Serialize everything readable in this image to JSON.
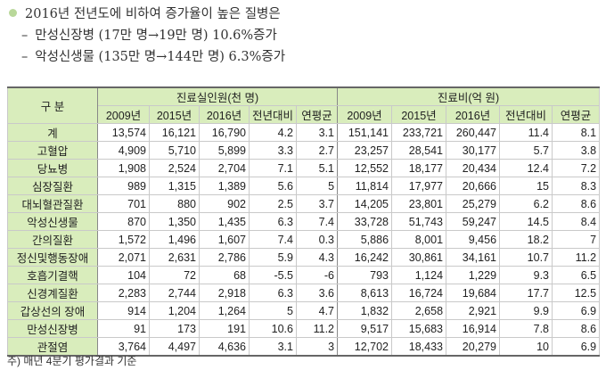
{
  "bullets": {
    "main": "2016년 전년도에 비하여 증가율이 높은 질병은",
    "sub": [
      "만성신장병 (17만 명→19만 명) 10.6%증가",
      "악성신생물 (135만 명→144만 명) 6.3%증가"
    ]
  },
  "table": {
    "category_header": "구 분",
    "group_headers": [
      "진료실인원(천 명)",
      "진료비(억 원)"
    ],
    "sub_headers": [
      "2009년",
      "2015년",
      "2016년",
      "전년대비",
      "연평균",
      "2009년",
      "2015년",
      "2016년",
      "전년대비",
      "연평균"
    ],
    "rows": [
      {
        "name": "계",
        "values": [
          "13,574",
          "16,121",
          "16,790",
          "4.2",
          "3.1",
          "151,141",
          "233,721",
          "260,447",
          "11.4",
          "8.1"
        ]
      },
      {
        "name": "고혈압",
        "values": [
          "4,909",
          "5,710",
          "5,899",
          "3.3",
          "2.7",
          "23,257",
          "28,541",
          "30,177",
          "5.7",
          "3.8"
        ]
      },
      {
        "name": "당뇨병",
        "values": [
          "1,908",
          "2,524",
          "2,704",
          "7.1",
          "5.1",
          "12,552",
          "18,177",
          "20,434",
          "12.4",
          "7.2"
        ]
      },
      {
        "name": "심장질환",
        "values": [
          "989",
          "1,315",
          "1,389",
          "5.6",
          "5",
          "11,814",
          "17,977",
          "20,666",
          "15",
          "8.3"
        ]
      },
      {
        "name": "대뇌혈관질환",
        "values": [
          "701",
          "880",
          "902",
          "2.5",
          "3.7",
          "14,205",
          "23,801",
          "25,279",
          "6.2",
          "8.6"
        ]
      },
      {
        "name": "악성신생물",
        "values": [
          "870",
          "1,350",
          "1,435",
          "6.3",
          "7.4",
          "33,728",
          "51,743",
          "59,247",
          "14.5",
          "8.4"
        ]
      },
      {
        "name": "간의질환",
        "values": [
          "1,572",
          "1,496",
          "1,607",
          "7.4",
          "0.3",
          "5,886",
          "8,001",
          "9,456",
          "18.2",
          "7"
        ]
      },
      {
        "name": "정신및행동장애",
        "values": [
          "2,071",
          "2,631",
          "2,786",
          "5.9",
          "4.3",
          "16,242",
          "30,861",
          "34,161",
          "10.7",
          "11.2"
        ]
      },
      {
        "name": "호흡기결핵",
        "values": [
          "104",
          "72",
          "68",
          "-5.5",
          "-6",
          "793",
          "1,124",
          "1,229",
          "9.3",
          "6.5"
        ]
      },
      {
        "name": "신경계질환",
        "values": [
          "2,283",
          "2,744",
          "2,918",
          "6.3",
          "3.6",
          "8,613",
          "16,724",
          "19,684",
          "17.7",
          "12.5"
        ]
      },
      {
        "name": "갑상선의 장애",
        "values": [
          "914",
          "1,204",
          "1,264",
          "5",
          "4.7",
          "1,832",
          "2,658",
          "2,921",
          "9.9",
          "6.9"
        ]
      },
      {
        "name": "만성신장병",
        "values": [
          "91",
          "173",
          "191",
          "10.6",
          "11.2",
          "9,517",
          "15,683",
          "16,914",
          "7.8",
          "8.6"
        ]
      },
      {
        "name": "관절염",
        "values": [
          "3,764",
          "4,497",
          "4,636",
          "3.1",
          "3",
          "12,702",
          "18,433",
          "20,279",
          "10",
          "6.9"
        ]
      }
    ]
  },
  "footnote": "주) 매년 4분기 평가결과 기준"
}
